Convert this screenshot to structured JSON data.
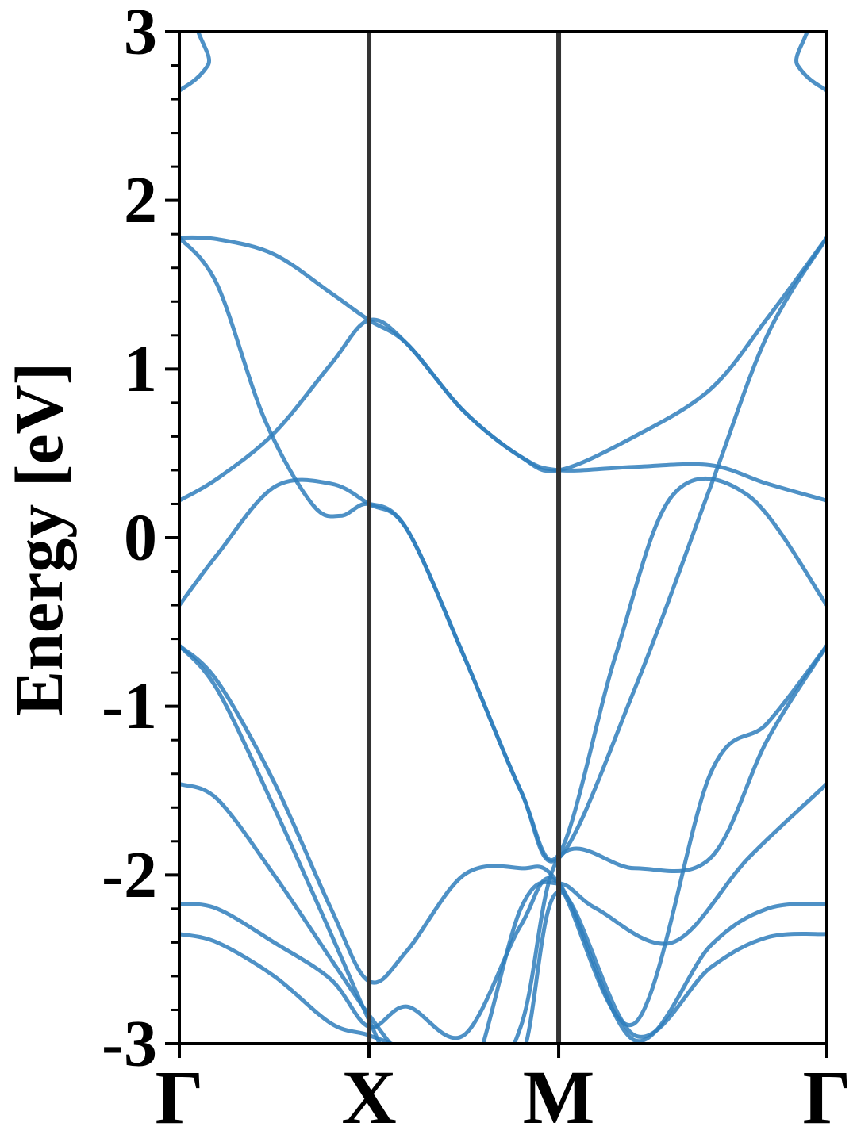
{
  "chart_data": {
    "type": "line",
    "title": "",
    "xlabel": "",
    "ylabel": "Energy [eV]",
    "ylim": [
      -3,
      3
    ],
    "yticks": [
      "-3",
      "-2",
      "-1",
      "0",
      "1",
      "2",
      "3"
    ],
    "y_minor_step": 0.2,
    "grid": false,
    "legend": "none",
    "high_symmetry_points": [
      {
        "label": "Γ",
        "k": 0.0
      },
      {
        "label": "X",
        "k": 1.0
      },
      {
        "label": "M",
        "k": 2.0
      },
      {
        "label": "Γ",
        "k": 3.414
      }
    ],
    "band_color": "#2f7ebc",
    "divider_color": "#333333",
    "bands": [
      {
        "k": [
          0.0,
          0.2,
          0.5,
          0.8,
          1.0,
          1.2,
          1.5,
          1.8,
          2.0,
          2.4,
          2.8,
          3.1,
          3.414
        ],
        "energy": [
          -2.35,
          -2.4,
          -2.6,
          -2.88,
          -2.95,
          -3.05,
          -3.3,
          -3.1,
          -2.1,
          -2.95,
          -2.55,
          -2.37,
          -2.35
        ]
      },
      {
        "k": [
          0.0,
          0.2,
          0.5,
          0.8,
          1.0,
          1.2,
          1.5,
          1.8,
          2.0,
          2.4,
          2.8,
          3.1,
          3.414
        ],
        "energy": [
          -2.17,
          -2.2,
          -2.4,
          -2.62,
          -2.9,
          -2.78,
          -2.95,
          -2.3,
          -2.05,
          -2.98,
          -2.42,
          -2.2,
          -2.17
        ]
      },
      {
        "k": [
          0.0,
          0.2,
          0.5,
          0.8,
          1.0,
          1.2,
          1.5,
          1.8,
          2.0,
          2.2,
          2.6,
          3.0,
          3.414
        ],
        "energy": [
          -1.46,
          -1.55,
          -2.0,
          -2.5,
          -2.83,
          -3.1,
          -3.3,
          -2.2,
          -2.05,
          -2.2,
          -2.4,
          -1.9,
          -1.46
        ]
      },
      {
        "k": [
          0.0,
          0.2,
          0.5,
          0.8,
          1.0,
          1.2,
          1.5,
          1.8,
          2.0,
          2.4,
          2.8,
          3.1,
          3.414
        ],
        "energy": [
          -0.64,
          -0.9,
          -1.6,
          -2.35,
          -2.86,
          -3.3,
          -3.5,
          -2.9,
          -1.9,
          -1.96,
          -1.9,
          -1.2,
          -0.64
        ]
      },
      {
        "k": [
          0.0,
          0.2,
          0.5,
          0.8,
          1.0,
          1.2,
          1.5,
          1.8,
          2.0,
          2.4,
          2.8,
          3.1,
          3.414
        ],
        "energy": [
          -0.64,
          -0.85,
          -1.45,
          -2.2,
          -2.63,
          -2.45,
          -2.0,
          -1.96,
          -2.05,
          -2.88,
          -1.4,
          -1.1,
          -0.64
        ]
      },
      {
        "k": [
          0.0,
          0.2,
          0.5,
          0.8,
          1.0,
          1.2,
          1.5,
          1.8,
          2.0,
          2.3,
          2.6,
          3.0,
          3.414
        ],
        "energy": [
          -0.4,
          -0.1,
          0.3,
          0.32,
          0.2,
          0.05,
          -0.7,
          -1.5,
          -1.88,
          -0.7,
          0.25,
          0.25,
          -0.4
        ]
      },
      {
        "k": [
          0.0,
          0.2,
          0.45,
          0.7,
          0.85,
          1.0,
          1.2,
          1.5,
          1.8,
          2.0,
          2.4,
          2.8,
          3.1,
          3.414
        ],
        "energy": [
          1.78,
          1.5,
          0.7,
          0.2,
          0.13,
          0.2,
          0.05,
          -0.7,
          -1.5,
          -1.9,
          -0.9,
          0.3,
          1.2,
          1.78
        ]
      },
      {
        "k": [
          0.0,
          0.2,
          0.5,
          0.8,
          1.0,
          1.2,
          1.5,
          1.8,
          2.0,
          2.4,
          2.8,
          3.1,
          3.414
        ],
        "energy": [
          0.22,
          0.35,
          0.62,
          1.03,
          1.29,
          1.15,
          0.75,
          0.48,
          0.4,
          0.42,
          0.43,
          0.32,
          0.22
        ]
      },
      {
        "k": [
          0.0,
          0.2,
          0.5,
          0.8,
          1.0,
          1.2,
          1.5,
          1.8,
          2.0,
          2.4,
          2.8,
          3.1,
          3.414
        ],
        "energy": [
          1.78,
          1.77,
          1.68,
          1.45,
          1.29,
          1.15,
          0.75,
          0.48,
          0.4,
          0.6,
          0.88,
          1.3,
          1.78
        ]
      },
      {
        "k": [
          0.0,
          0.15,
          0.35,
          3.06,
          3.26,
          3.414
        ],
        "energy": [
          2.65,
          2.8,
          3.25,
          3.25,
          2.8,
          2.65
        ]
      }
    ]
  }
}
